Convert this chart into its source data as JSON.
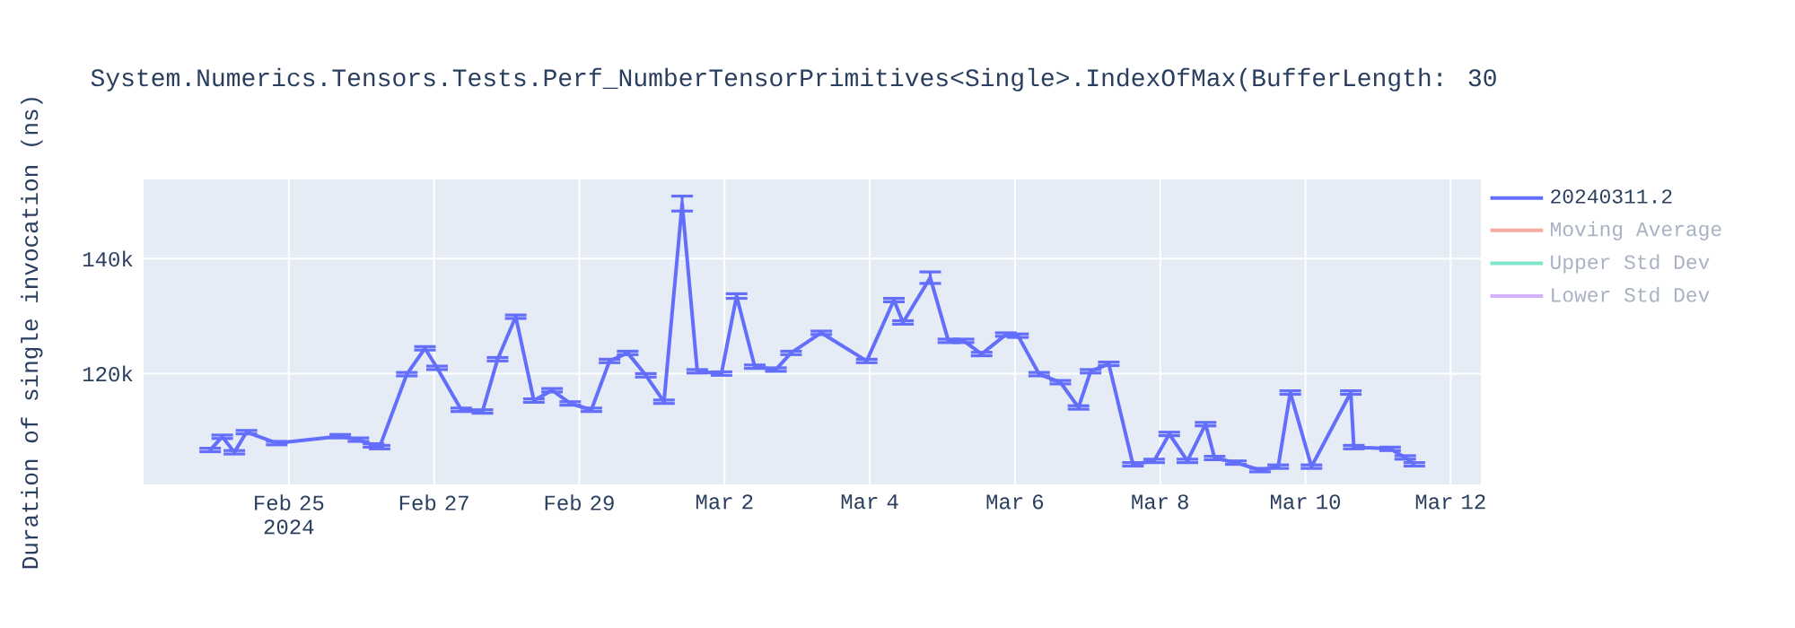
{
  "chart_data": {
    "type": "line",
    "title": "System.Numerics.Tensors.Tests.Perf_NumberTensorPrimitives<Single>.IndexOfMax(BufferLength: 30",
    "ylabel": "Duration of single invocation (ns)",
    "x": [
      "2024-02-23T22:00",
      "2024-02-24T02:00",
      "2024-02-24T06:00",
      "2024-02-24T10:00",
      "2024-02-24T20:00",
      "2024-02-25T17:00",
      "2024-02-25T23:00",
      "2024-02-26T04:00",
      "2024-02-26T06:00",
      "2024-02-26T15:00",
      "2024-02-26T21:00",
      "2024-02-27T01:00",
      "2024-02-27T09:00",
      "2024-02-27T16:00",
      "2024-02-27T21:00",
      "2024-02-28T03:00",
      "2024-02-28T09:00",
      "2024-02-28T15:00",
      "2024-02-28T21:00",
      "2024-02-29T04:00",
      "2024-02-29T10:00",
      "2024-02-29T16:00",
      "2024-02-29T22:00",
      "2024-03-01T04:00",
      "2024-03-01T10:00",
      "2024-03-01T15:00",
      "2024-03-01T23:00",
      "2024-03-02T04:00",
      "2024-03-02T10:00",
      "2024-03-02T17:00",
      "2024-03-02T22:00",
      "2024-03-03T08:00",
      "2024-03-03T23:00",
      "2024-03-04T08:00",
      "2024-03-04T11:00",
      "2024-03-04T20:00",
      "2024-03-05T02:00",
      "2024-03-05T07:00",
      "2024-03-05T13:00",
      "2024-03-05T21:00",
      "2024-03-06T01:00",
      "2024-03-06T08:00",
      "2024-03-06T15:00",
      "2024-03-06T21:00",
      "2024-03-07T01:00",
      "2024-03-07T07:00",
      "2024-03-07T15:00",
      "2024-03-07T22:00",
      "2024-03-08T03:00",
      "2024-03-08T09:00",
      "2024-03-08T15:00",
      "2024-03-08T18:00",
      "2024-03-09T01:00",
      "2024-03-09T09:00",
      "2024-03-09T15:00",
      "2024-03-09T19:00",
      "2024-03-10T02:00",
      "2024-03-10T15:00",
      "2024-03-10T16:00",
      "2024-03-11T04:00",
      "2024-03-11T09:00",
      "2024-03-11T12:00"
    ],
    "series": [
      {
        "name": "20240311.2",
        "color": "#636efa",
        "values": [
          106700,
          109000,
          106300,
          109800,
          107900,
          109100,
          108500,
          107500,
          107200,
          119900,
          124400,
          121000,
          113700,
          113400,
          122500,
          129900,
          115300,
          117100,
          114800,
          113700,
          122200,
          123600,
          119700,
          115100,
          149600,
          120400,
          120000,
          133500,
          121200,
          120700,
          123600,
          127100,
          122200,
          132800,
          128900,
          136700,
          125700,
          125700,
          123400,
          126800,
          126600,
          119900,
          118500,
          114100,
          120400,
          121700,
          104200,
          104800,
          109500,
          104800,
          111200,
          105300,
          104500,
          103200,
          103800,
          116700,
          103800,
          116700,
          107200,
          106900,
          105400,
          104200
        ],
        "errors": [
          300,
          300,
          300,
          300,
          300,
          300,
          300,
          300,
          300,
          300,
          300,
          300,
          300,
          300,
          300,
          300,
          300,
          300,
          300,
          300,
          300,
          300,
          300,
          300,
          1300,
          300,
          300,
          400,
          300,
          300,
          300,
          300,
          300,
          300,
          300,
          1000,
          300,
          300,
          300,
          300,
          300,
          300,
          300,
          300,
          300,
          300,
          300,
          300,
          300,
          300,
          300,
          300,
          300,
          300,
          300,
          300,
          300,
          300,
          300,
          300,
          300,
          300
        ]
      },
      {
        "name": "Moving Average",
        "color": "#f7aa9d",
        "values": [
          null,
          null,
          null,
          null,
          null,
          null,
          null,
          null,
          null,
          null,
          null,
          null,
          null,
          null,
          null,
          null,
          null,
          null,
          null,
          null,
          null,
          null,
          null,
          null,
          null,
          null,
          null,
          null,
          null,
          null,
          null,
          null,
          null,
          null,
          null,
          null,
          null,
          null,
          null,
          null,
          null,
          null,
          null,
          null,
          null,
          null,
          null,
          null,
          null,
          null,
          null,
          null,
          null,
          null,
          null,
          null,
          null,
          null,
          null,
          null,
          null,
          null
        ]
      },
      {
        "name": "Upper Std Dev",
        "color": "#80e6cb",
        "values": [
          null,
          null,
          null,
          null,
          null,
          null,
          null,
          null,
          null,
          null,
          null,
          null,
          null,
          null,
          null,
          null,
          null,
          null,
          null,
          null,
          null,
          null,
          null,
          null,
          null,
          null,
          null,
          null,
          null,
          null,
          null,
          null,
          null,
          null,
          null,
          null,
          null,
          null,
          null,
          null,
          null,
          null,
          null,
          null,
          null,
          null,
          null,
          null,
          null,
          null,
          null,
          null,
          null,
          null,
          null,
          null,
          null,
          null,
          null,
          null,
          null,
          null
        ]
      },
      {
        "name": "Lower Std Dev",
        "color": "#d5b1fd",
        "values": [
          null,
          null,
          null,
          null,
          null,
          null,
          null,
          null,
          null,
          null,
          null,
          null,
          null,
          null,
          null,
          null,
          null,
          null,
          null,
          null,
          null,
          null,
          null,
          null,
          null,
          null,
          null,
          null,
          null,
          null,
          null,
          null,
          null,
          null,
          null,
          null,
          null,
          null,
          null,
          null,
          null,
          null,
          null,
          null,
          null,
          null,
          null,
          null,
          null,
          null,
          null,
          null,
          null,
          null,
          null,
          null,
          null,
          null,
          null,
          null,
          null,
          null
        ]
      }
    ],
    "xlim": [
      "2024-02-23T00:00",
      "2024-03-12T10:00"
    ],
    "xticks": [
      {
        "value": "2024-02-25",
        "label": "Feb 25 2024"
      },
      {
        "value": "2024-02-27",
        "label": "Feb 27"
      },
      {
        "value": "2024-02-29",
        "label": "Feb 29"
      },
      {
        "value": "2024-03-02",
        "label": "Mar 2"
      },
      {
        "value": "2024-03-04",
        "label": "Mar 4"
      },
      {
        "value": "2024-03-06",
        "label": "Mar 6"
      },
      {
        "value": "2024-03-08",
        "label": "Mar 8"
      },
      {
        "value": "2024-03-10",
        "label": "Mar 10"
      },
      {
        "value": "2024-03-12",
        "label": "Mar 12"
      }
    ],
    "ylim": [
      100700,
      153800
    ],
    "yticks": [
      {
        "value": 120000,
        "label": "120k"
      },
      {
        "value": 140000,
        "label": "140k"
      }
    ],
    "grid": true,
    "legend": "right",
    "marker": "none"
  }
}
